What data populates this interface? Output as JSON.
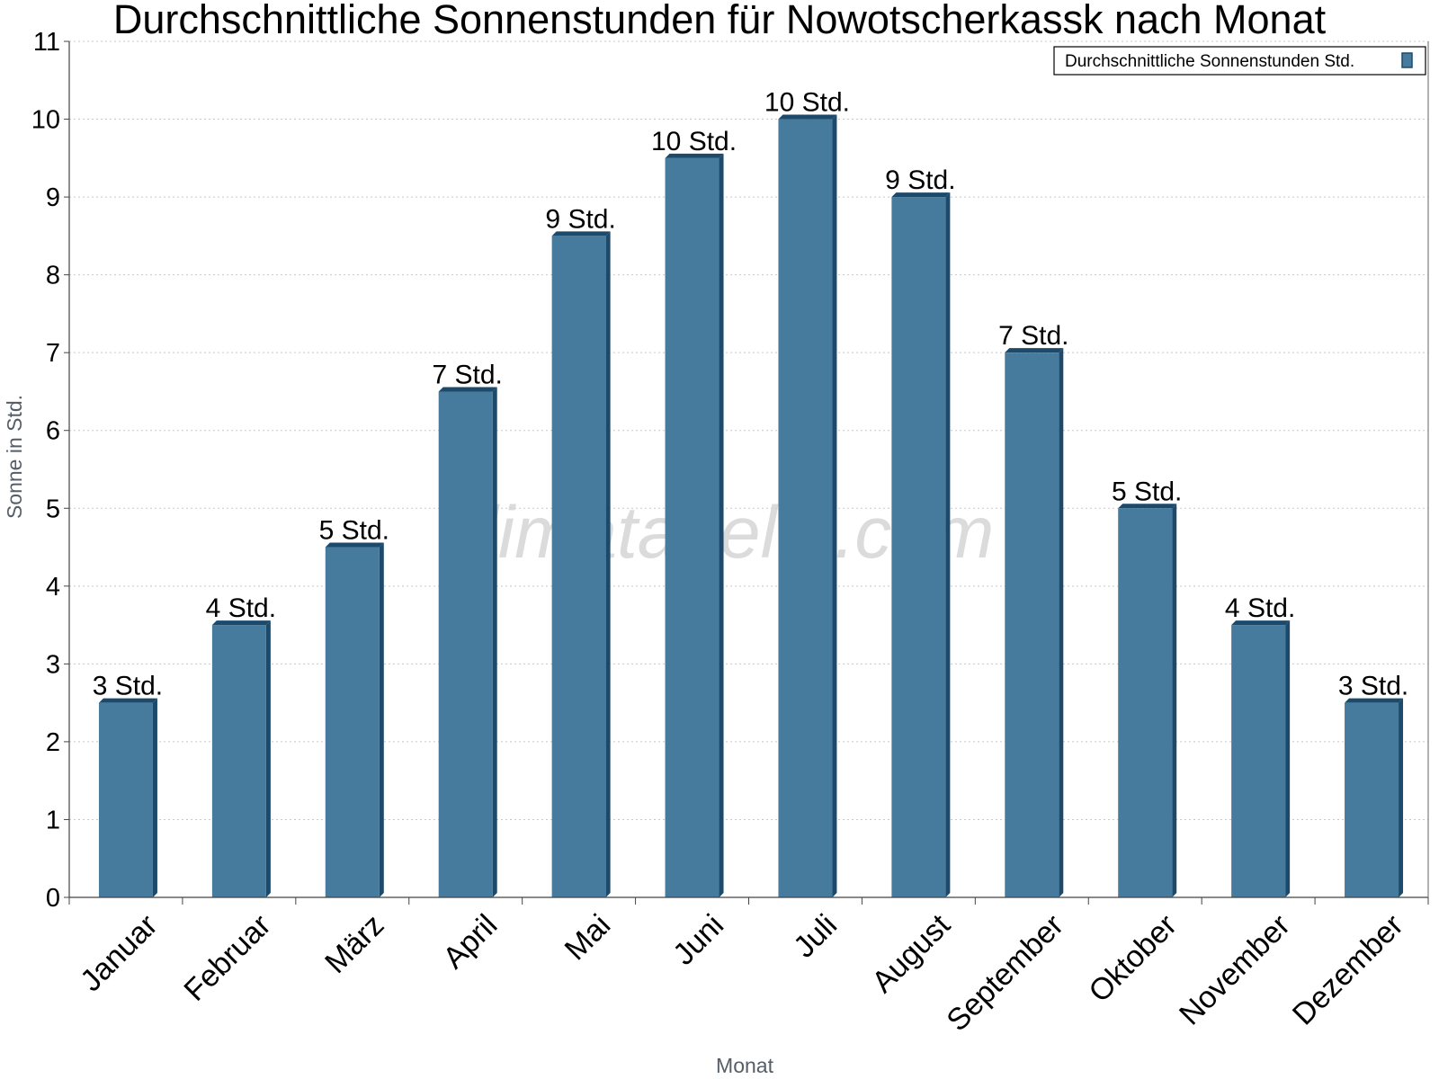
{
  "chart_data": {
    "type": "bar",
    "title": "Durchschnittliche Sonnenstunden für Nowotscherkassk nach Monat",
    "xlabel": "Monat",
    "ylabel": "Sonne in Std.",
    "categories": [
      "Januar",
      "Februar",
      "März",
      "April",
      "Mai",
      "Juni",
      "Juli",
      "August",
      "September",
      "Oktober",
      "November",
      "Dezember"
    ],
    "series": [
      {
        "name": "Durchschnittliche Sonnenstunden Std.",
        "values": [
          2.5,
          3.5,
          4.5,
          6.5,
          8.5,
          9.5,
          10,
          9,
          7,
          5,
          3.5,
          2.5
        ],
        "labels": [
          "3 Std.",
          "4 Std.",
          "5 Std.",
          "7 Std.",
          "9 Std.",
          "10 Std.",
          "10 Std.",
          "9 Std.",
          "7 Std.",
          "5 Std.",
          "4 Std.",
          "3 Std."
        ],
        "color": "#467b9e",
        "side_color": "#1d4a6b"
      }
    ],
    "ylim": [
      0,
      11
    ],
    "yticks": [
      0,
      1,
      2,
      3,
      4,
      5,
      6,
      7,
      8,
      9,
      10,
      11
    ],
    "grid": true,
    "legend_position": "top-right",
    "watermark": "klimatabelle.com"
  }
}
